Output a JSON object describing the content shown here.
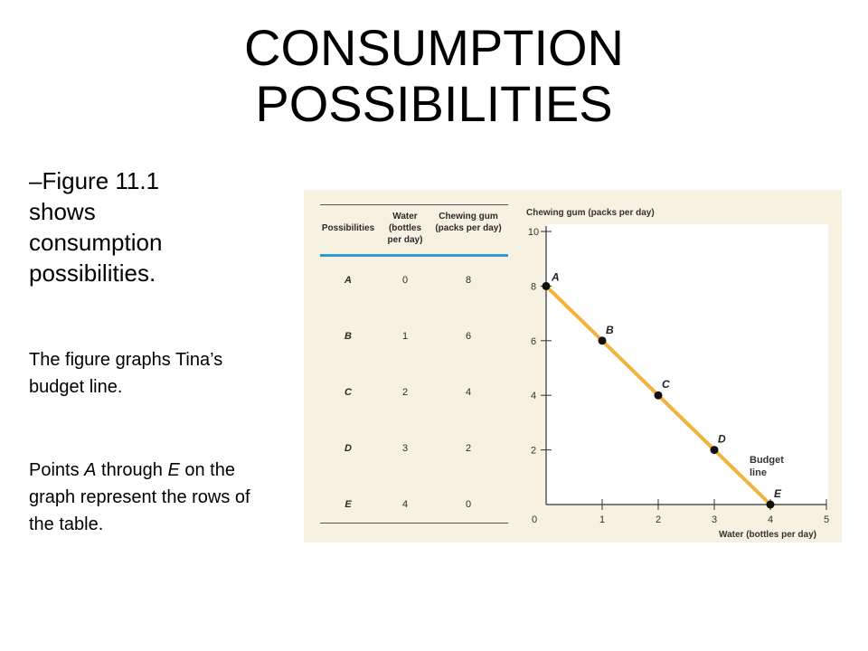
{
  "title_line1": "CONSUMPTION",
  "title_line2": "POSSIBILITIES",
  "bullet": "–Figure 11.1 shows consumption possibilities.",
  "para1": "The figure graphs Tina’s budget line.",
  "para2": {
    "t1": "Points ",
    "a": "A",
    "t2": " through ",
    "e": "E",
    "t3": " on the graph represent the rows of the table."
  },
  "table": {
    "headers": [
      "Possibilities",
      "Water (bottles per day)",
      "Chewing gum (packs per day)"
    ],
    "rows": [
      [
        "A",
        "0",
        "8"
      ],
      [
        "B",
        "1",
        "6"
      ],
      [
        "C",
        "2",
        "4"
      ],
      [
        "D",
        "3",
        "2"
      ],
      [
        "E",
        "4",
        "0"
      ]
    ]
  },
  "chart_data": {
    "type": "line",
    "title": "",
    "xlabel": "Water (bottles per day)",
    "ylabel": "Chewing gum (packs per day)",
    "xlim": [
      0,
      5
    ],
    "ylim": [
      0,
      10
    ],
    "x_ticks": [
      "0",
      "1",
      "2",
      "3",
      "4",
      "5"
    ],
    "y_ticks": [
      "2",
      "4",
      "6",
      "8",
      "10"
    ],
    "points": [
      {
        "label": "A",
        "x": 0,
        "y": 8
      },
      {
        "label": "B",
        "x": 1,
        "y": 6
      },
      {
        "label": "C",
        "x": 2,
        "y": 4
      },
      {
        "label": "D",
        "x": 3,
        "y": 2
      },
      {
        "label": "E",
        "x": 4,
        "y": 0
      }
    ],
    "annotation": "Budget line",
    "line_color": "#f2b33c",
    "point_color": "#111111",
    "grid": false
  }
}
